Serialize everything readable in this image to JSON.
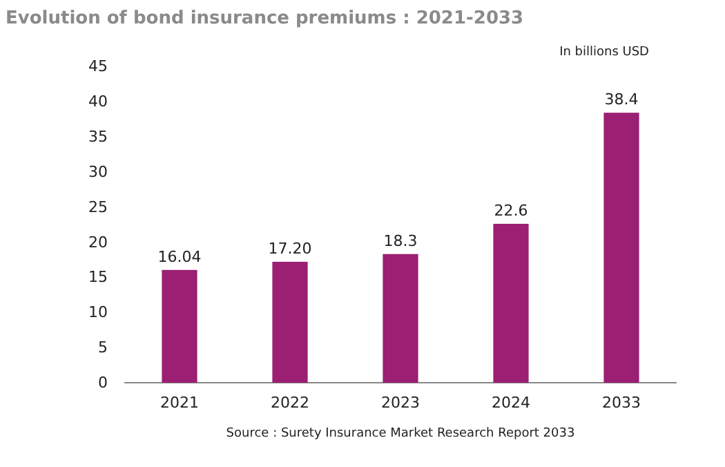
{
  "chart_data": {
    "type": "bar",
    "title": "Evolution of bond insurance premiums : 2021-2033",
    "subtitle": "In billions USD",
    "categories": [
      "2021",
      "2022",
      "2023",
      "2024",
      "2033"
    ],
    "values": [
      16.04,
      17.2,
      18.3,
      22.6,
      38.4
    ],
    "value_labels": [
      "16.04",
      "17.20",
      "18.3",
      "22.6",
      "38.4"
    ],
    "color": "#9b1f72",
    "ylim": [
      0,
      45
    ],
    "yticks": [
      0,
      5,
      10,
      15,
      20,
      25,
      30,
      35,
      40,
      45
    ],
    "grid": false,
    "annotations": [
      "Source : Surety Insurance Market Research Report 2033"
    ]
  }
}
